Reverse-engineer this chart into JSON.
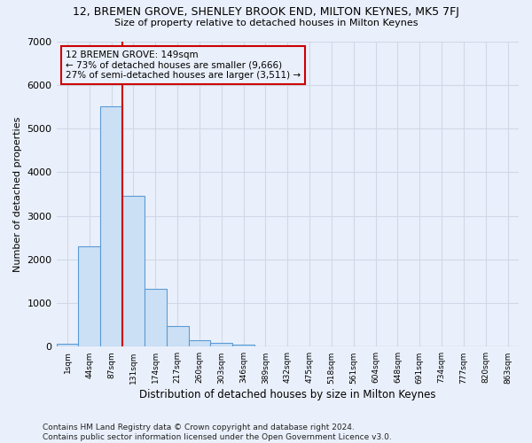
{
  "title": "12, BREMEN GROVE, SHENLEY BROOK END, MILTON KEYNES, MK5 7FJ",
  "subtitle": "Size of property relative to detached houses in Milton Keynes",
  "xlabel": "Distribution of detached houses by size in Milton Keynes",
  "ylabel": "Number of detached properties",
  "footer_line1": "Contains HM Land Registry data © Crown copyright and database right 2024.",
  "footer_line2": "Contains public sector information licensed under the Open Government Licence v3.0.",
  "bar_labels": [
    "1sqm",
    "44sqm",
    "87sqm",
    "131sqm",
    "174sqm",
    "217sqm",
    "260sqm",
    "303sqm",
    "346sqm",
    "389sqm",
    "432sqm",
    "475sqm",
    "518sqm",
    "561sqm",
    "604sqm",
    "648sqm",
    "691sqm",
    "734sqm",
    "777sqm",
    "820sqm",
    "863sqm"
  ],
  "bar_values": [
    75,
    2300,
    5500,
    3450,
    1320,
    475,
    155,
    85,
    55,
    0,
    0,
    0,
    0,
    0,
    0,
    0,
    0,
    0,
    0,
    0,
    0
  ],
  "bar_color": "#cce0f5",
  "bar_edge_color": "#5b9bd5",
  "grid_color": "#d0d8e8",
  "background_color": "#eaf0fb",
  "annotation_line1": "12 BREMEN GROVE: 149sqm",
  "annotation_line2": "← 73% of detached houses are smaller (9,666)",
  "annotation_line3": "27% of semi-detached houses are larger (3,511) →",
  "annotation_box_edge": "#cc0000",
  "vline_color": "#cc0000",
  "vline_x": 3.0,
  "ylim": [
    0,
    7000
  ],
  "yticks": [
    0,
    1000,
    2000,
    3000,
    4000,
    5000,
    6000,
    7000
  ]
}
